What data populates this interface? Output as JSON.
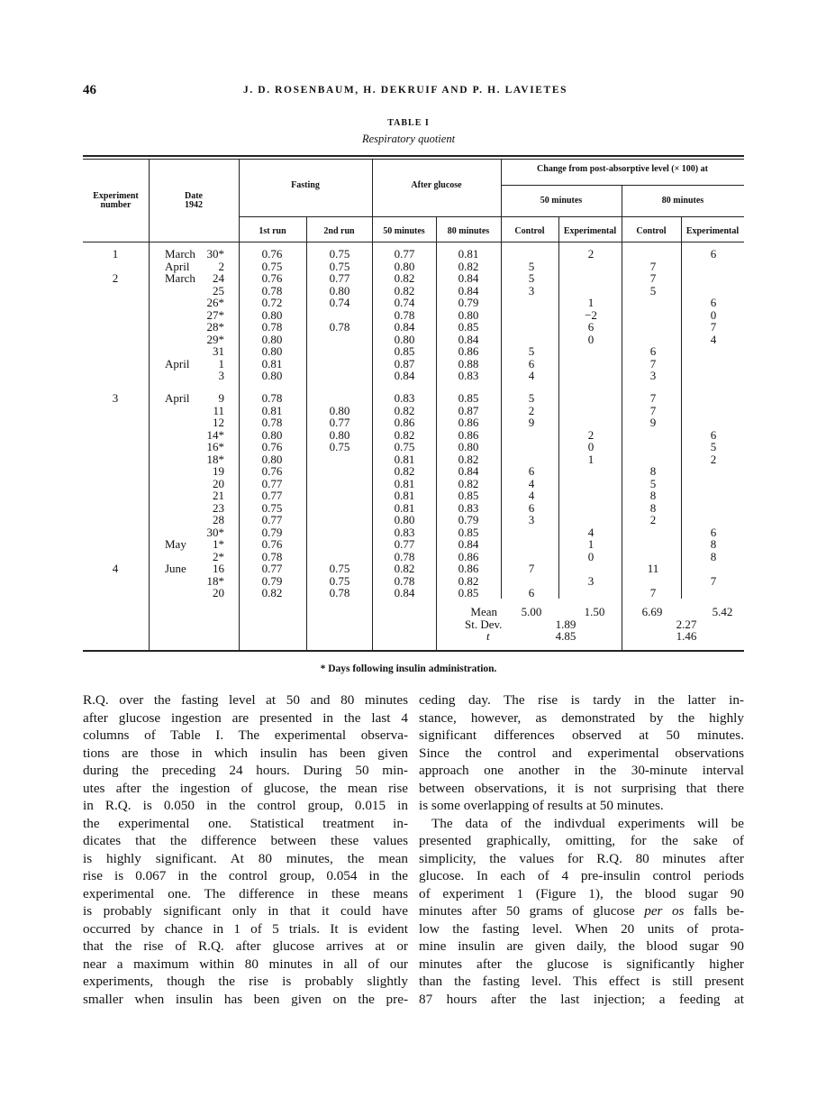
{
  "header": {
    "page_number": "46",
    "authors": "J. D. ROSENBAUM, H. DEKRUIF AND P. H. LAVIETES"
  },
  "table": {
    "label": "TABLE I",
    "caption": "Respiratory quotient",
    "headers": {
      "experiment_number": "Experiment number",
      "date": "Date",
      "date_year": "1942",
      "fasting": "Fasting",
      "after_glucose": "After glucose",
      "change": "Change from post-absorptive level (× 100) at",
      "min50": "50 minutes",
      "min80": "80 minutes",
      "run1": "1st run",
      "run2": "2nd run",
      "glucose50": "50 minutes",
      "glucose80": "80 minutes",
      "control50": "Control",
      "experimental50": "Experimental",
      "control80": "Control",
      "experimental80": "Experimental"
    },
    "groups": [
      {
        "rows": [
          [
            "1",
            "March",
            "30*",
            "0.76",
            "0.75",
            "0.77",
            "0.81",
            "",
            "2",
            "",
            "6"
          ],
          [
            "",
            "April",
            "2",
            "0.75",
            "0.75",
            "0.80",
            "0.82",
            "5",
            "",
            "7",
            ""
          ],
          [
            "2",
            "March",
            "24",
            "0.76",
            "0.77",
            "0.82",
            "0.84",
            "5",
            "",
            "7",
            ""
          ],
          [
            "",
            "",
            "25",
            "0.78",
            "0.80",
            "0.82",
            "0.84",
            "3",
            "",
            "5",
            ""
          ],
          [
            "",
            "",
            "26*",
            "0.72",
            "0.74",
            "0.74",
            "0.79",
            "",
            "1",
            "",
            "6"
          ],
          [
            "",
            "",
            "27*",
            "0.80",
            "",
            "0.78",
            "0.80",
            "",
            "−2",
            "",
            "0"
          ],
          [
            "",
            "",
            "28*",
            "0.78",
            "0.78",
            "0.84",
            "0.85",
            "",
            "6",
            "",
            "7"
          ],
          [
            "",
            "",
            "29*",
            "0.80",
            "",
            "0.80",
            "0.84",
            "",
            "0",
            "",
            "4"
          ],
          [
            "",
            "",
            "31",
            "0.80",
            "",
            "0.85",
            "0.86",
            "5",
            "",
            "6",
            ""
          ],
          [
            "",
            "April",
            "1",
            "0.81",
            "",
            "0.87",
            "0.88",
            "6",
            "",
            "7",
            ""
          ],
          [
            "",
            "",
            "3",
            "0.80",
            "",
            "0.84",
            "0.83",
            "4",
            "",
            "3",
            ""
          ]
        ]
      },
      {
        "rows": [
          [
            "3",
            "April",
            "9",
            "0.78",
            "",
            "0.83",
            "0.85",
            "5",
            "",
            "7",
            ""
          ],
          [
            "",
            "",
            "11",
            "0.81",
            "0.80",
            "0.82",
            "0.87",
            "2",
            "",
            "7",
            ""
          ],
          [
            "",
            "",
            "12",
            "0.78",
            "0.77",
            "0.86",
            "0.86",
            "9",
            "",
            "9",
            ""
          ],
          [
            "",
            "",
            "14*",
            "0.80",
            "0.80",
            "0.82",
            "0.86",
            "",
            "2",
            "",
            "6"
          ],
          [
            "",
            "",
            "16*",
            "0.76",
            "0.75",
            "0.75",
            "0.80",
            "",
            "0",
            "",
            "5"
          ],
          [
            "",
            "",
            "18*",
            "0.80",
            "",
            "0.81",
            "0.82",
            "",
            "1",
            "",
            "2"
          ],
          [
            "",
            "",
            "19",
            "0.76",
            "",
            "0.82",
            "0.84",
            "6",
            "",
            "8",
            ""
          ],
          [
            "",
            "",
            "20",
            "0.77",
            "",
            "0.81",
            "0.82",
            "4",
            "",
            "5",
            ""
          ],
          [
            "",
            "",
            "21",
            "0.77",
            "",
            "0.81",
            "0.85",
            "4",
            "",
            "8",
            ""
          ],
          [
            "",
            "",
            "23",
            "0.75",
            "",
            "0.81",
            "0.83",
            "6",
            "",
            "8",
            ""
          ],
          [
            "",
            "",
            "28",
            "0.77",
            "",
            "0.80",
            "0.79",
            "3",
            "",
            "2",
            ""
          ],
          [
            "",
            "",
            "30*",
            "0.79",
            "",
            "0.83",
            "0.85",
            "",
            "4",
            "",
            "6"
          ],
          [
            "",
            "May",
            "1*",
            "0.76",
            "",
            "0.77",
            "0.84",
            "",
            "1",
            "",
            "8"
          ],
          [
            "",
            "",
            "2*",
            "0.78",
            "",
            "0.78",
            "0.86",
            "",
            "0",
            "",
            "8"
          ],
          [
            "4",
            "June",
            "16",
            "0.77",
            "0.75",
            "0.82",
            "0.86",
            "7",
            "",
            "11",
            ""
          ],
          [
            "",
            "",
            "18*",
            "0.79",
            "0.75",
            "0.78",
            "0.82",
            "",
            "3",
            "",
            "7"
          ],
          [
            "",
            "",
            "20",
            "0.82",
            "0.78",
            "0.84",
            "0.85",
            "6",
            "",
            "7",
            ""
          ]
        ]
      }
    ],
    "stats": {
      "mean_label": "Mean",
      "mean_control50": "5.00",
      "mean_experimental50": "1.50",
      "mean_control80": "6.69",
      "mean_experimental80": "5.42",
      "sd_label": "St. Dev.",
      "sd50": "1.89",
      "sd80": "2.27",
      "t_label": "t",
      "t50": "4.85",
      "t80": "1.46"
    },
    "footnote": "* Days following insulin administration."
  },
  "body": {
    "left_column": [
      {
        "text": "R.Q. over the fasting level at 50 and 80 minutes"
      },
      {
        "text": "after glucose ingestion are presented in the last 4"
      },
      {
        "text": "columns of Table I.  The experimental observa-"
      },
      {
        "text": "tions are those in which insulin has been given"
      },
      {
        "text": "during the preceding 24 hours.  During 50 min-"
      },
      {
        "text": "utes after the ingestion of glucose, the mean rise"
      },
      {
        "text": "in R.Q. is 0.050 in the control group, 0.015 in"
      },
      {
        "text": "the experimental one.  Statistical treatment in-"
      },
      {
        "text": "dicates that the difference between these values"
      },
      {
        "text": "is highly significant.  At 80 minutes, the mean"
      },
      {
        "text": "rise is 0.067 in the control group, 0.054 in the"
      },
      {
        "text": "experimental one.  The difference in these means"
      },
      {
        "text": "is probably significant only in that it could have"
      },
      {
        "text": "occurred by chance in 1 of 5 trials.  It is evident"
      },
      {
        "text": "that the rise of R.Q. after glucose arrives at or"
      },
      {
        "text": "near a maximum within 80 minutes in all of our"
      },
      {
        "text": "experiments, though the rise is probably slightly"
      },
      {
        "text": "smaller when insulin has been given on the pre-"
      }
    ],
    "right_column": [
      {
        "text": "ceding day.  The rise is tardy in the latter in-"
      },
      {
        "text": "stance, however, as demonstrated by the highly"
      },
      {
        "text": "significant differences observed at 50 minutes."
      },
      {
        "text": "Since the control and experimental observations"
      },
      {
        "text": "approach one another in the 30-minute interval"
      },
      {
        "text": "between observations, it is not surprising that there"
      },
      {
        "text": "is some overlapping of results at 50 minutes.",
        "last": true
      },
      {
        "text": "The data of the indivdual experiments will be",
        "indent": true
      },
      {
        "text": "presented graphically, omitting, for the sake of"
      },
      {
        "text": "simplicity, the values for R.Q. 80 minutes after"
      },
      {
        "text": "glucose.  In each of 4 pre-insulin control periods"
      },
      {
        "text": "of experiment 1 (Figure 1), the blood sugar 90"
      },
      {
        "text": "minutes after 50 grams of glucose per os falls be-"
      },
      {
        "text": "low the fasting level.  When 20 units of prota-"
      },
      {
        "text": "mine insulin are given daily, the blood sugar 90"
      },
      {
        "text": "minutes after the glucose is significantly higher"
      },
      {
        "text": "than the fasting level.  This effect is still present"
      },
      {
        "text": "87 hours after the last injection; a feeding at"
      }
    ]
  }
}
